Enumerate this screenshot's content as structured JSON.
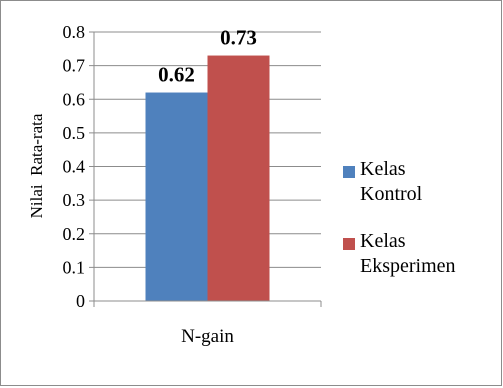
{
  "chart_data": {
    "type": "bar",
    "categories": [
      "N-gain"
    ],
    "series": [
      {
        "name": "Kelas Kontrol",
        "name_lines": [
          "Kelas",
          "Kontrol"
        ],
        "values": [
          0.62
        ],
        "color": "#4f81bd",
        "label": "0.62"
      },
      {
        "name": "Kelas Eksperimen",
        "name_lines": [
          "Kelas",
          "Eksperimen"
        ],
        "values": [
          0.73
        ],
        "color": "#c0504d",
        "label": "0.73"
      }
    ],
    "ylabel": "Nilai  Rata-rata",
    "xlabel": "",
    "ylim": [
      0,
      0.8
    ],
    "yticks": [
      "0",
      "0.1",
      "0.2",
      "0.3",
      "0.4",
      "0.5",
      "0.6",
      "0.7",
      "0.8"
    ],
    "grid": true,
    "legend_position": "right"
  }
}
